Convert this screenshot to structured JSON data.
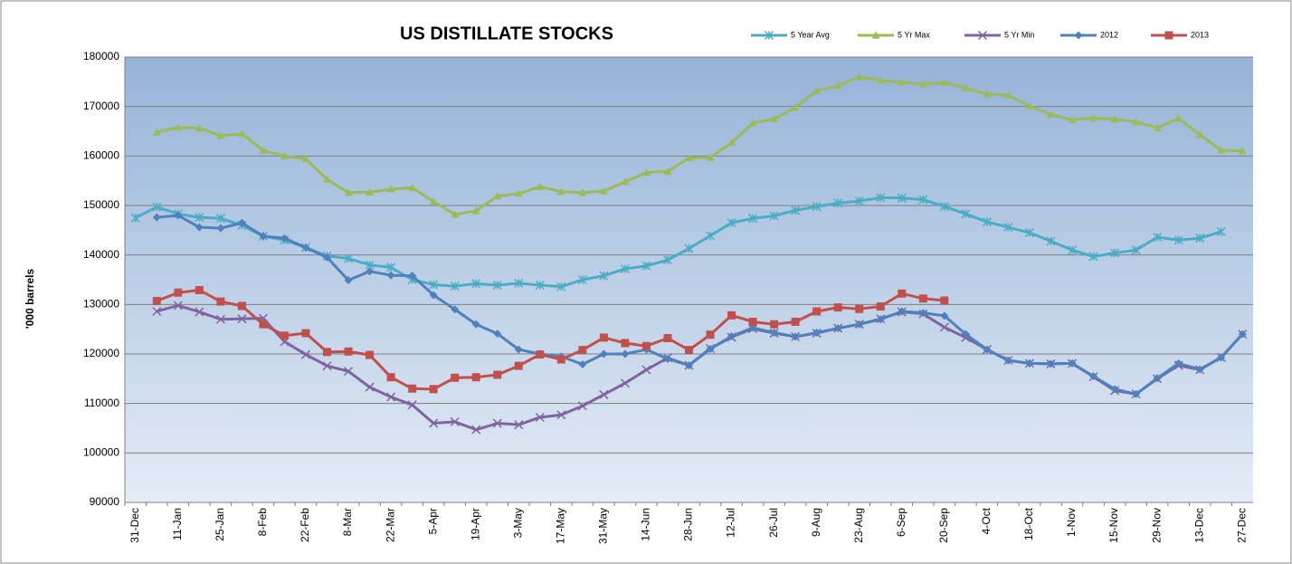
{
  "chart_data": {
    "type": "line",
    "title": "US DISTILLATE STOCKS",
    "y_label": "'000 barrels",
    "categories": [
      "31-Dec",
      null,
      "11-Jan",
      null,
      "25-Jan",
      null,
      "8-Feb",
      null,
      "22-Feb",
      null,
      "8-Mar",
      null,
      "22-Mar",
      null,
      "5-Apr",
      null,
      "19-Apr",
      null,
      "3-May",
      null,
      "17-May",
      null,
      "31-May",
      null,
      "14-Jun",
      null,
      "28-Jun",
      null,
      "12-Jul",
      null,
      "26-Jul",
      null,
      "9-Aug",
      null,
      "23-Aug",
      null,
      "6-Sep",
      null,
      "20-Sep",
      null,
      "4-Oct",
      null,
      "18-Oct",
      null,
      "1-Nov",
      null,
      "15-Nov",
      null,
      "29-Nov",
      null,
      "13-Dec",
      null,
      "27-Dec"
    ],
    "ylim": [
      90000,
      180000
    ],
    "yticks": [
      90000,
      100000,
      110000,
      120000,
      130000,
      140000,
      150000,
      160000,
      170000,
      180000
    ],
    "grid": true,
    "legend": "top",
    "series": [
      {
        "name": "5 Year Avg",
        "color": "#4bacc6",
        "marker": "star",
        "values": [
          147500,
          149700,
          148300,
          147600,
          147400,
          146000,
          143800,
          143000,
          141500,
          139800,
          139300,
          138000,
          137500,
          135000,
          134000,
          133700,
          134200,
          133900,
          134300,
          133900,
          133600,
          135000,
          135800,
          137200,
          137800,
          139000,
          141300,
          143900,
          146500,
          147400,
          147900,
          149000,
          149800,
          150500,
          150900,
          151600,
          151500,
          151200,
          149800,
          148300,
          146700,
          145600,
          144500,
          142800,
          141000,
          139700,
          140400,
          141000,
          143600,
          143000,
          143400,
          144700,
          null
        ]
      },
      {
        "name": "5 Yr Max",
        "color": "#9bbb59",
        "marker": "triangle",
        "values": [
          null,
          164800,
          165800,
          165600,
          164100,
          164500,
          161100,
          160000,
          159400,
          155300,
          152600,
          152700,
          153300,
          153600,
          150800,
          148200,
          148900,
          151900,
          152400,
          153800,
          152800,
          152600,
          152900,
          154800,
          156700,
          156900,
          159600,
          159700,
          162700,
          166600,
          167500,
          169800,
          173200,
          174200,
          176000,
          175300,
          174900,
          174500,
          174900,
          173700,
          172500,
          172300,
          170100,
          168400,
          167300,
          167700,
          167400,
          166900,
          165700,
          167600,
          164300,
          161200,
          161000
        ]
      },
      {
        "name": "5 Yr Min",
        "color": "#8064a2",
        "marker": "x",
        "values": [
          null,
          128600,
          129800,
          128500,
          127000,
          127100,
          127200,
          122500,
          119900,
          117600,
          116500,
          113300,
          111300,
          109700,
          106000,
          106300,
          104700,
          106000,
          105700,
          107200,
          107700,
          109500,
          111800,
          114100,
          116800,
          119200,
          117700,
          121100,
          123400,
          125100,
          124200,
          123500,
          124200,
          125200,
          126000,
          127100,
          128500,
          128100,
          125400,
          123300,
          120900,
          118700,
          118100,
          118000,
          118100,
          115400,
          112600,
          111900,
          115000,
          117700,
          116800,
          119300,
          124000
        ]
      },
      {
        "name": "2012",
        "color": "#4f81bd",
        "marker": "diamond",
        "values": [
          null,
          147600,
          148000,
          145600,
          145400,
          146500,
          143800,
          143400,
          141500,
          139500,
          134900,
          136700,
          135900,
          135800,
          131900,
          129000,
          126000,
          124100,
          120900,
          120000,
          119500,
          117900,
          120000,
          120000,
          120900,
          119000,
          117700,
          121000,
          123600,
          125300,
          124300,
          123500,
          124300,
          125200,
          126000,
          127000,
          128600,
          128300,
          127700,
          124000,
          120900,
          118700,
          118100,
          118000,
          118100,
          115500,
          112900,
          111900,
          115100,
          118100,
          116900,
          119300,
          124000
        ]
      },
      {
        "name": "2013",
        "color": "#c0504d",
        "marker": "square",
        "values": [
          null,
          130700,
          132400,
          132900,
          130600,
          129700,
          126000,
          123700,
          124200,
          120400,
          120500,
          119800,
          115300,
          113000,
          112900,
          115200,
          115300,
          115800,
          117600,
          119900,
          118900,
          120800,
          123300,
          122200,
          121600,
          123200,
          120800,
          123900,
          127800,
          126500,
          126000,
          126500,
          128600,
          129400,
          129100,
          129600,
          132200,
          131200,
          130800,
          null,
          null,
          null,
          null,
          null,
          null,
          null,
          null,
          null,
          null,
          null,
          null,
          null,
          null
        ]
      }
    ]
  }
}
